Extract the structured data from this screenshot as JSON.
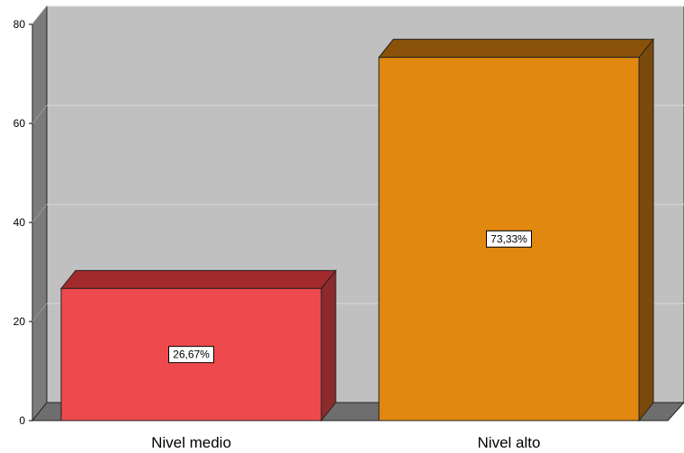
{
  "chart_data": {
    "type": "bar",
    "style": "3d",
    "categories": [
      "Nivel medio",
      "Nivel alto"
    ],
    "values": [
      26.67,
      73.33
    ],
    "data_labels": [
      "26,67%",
      "73,33%"
    ],
    "ylim": [
      0,
      80
    ],
    "yticks": [
      0,
      20,
      40,
      60,
      80
    ],
    "title": "",
    "xlabel": "",
    "ylabel": "",
    "grid": true,
    "legend": "none",
    "colors": {
      "bars": [
        "#ee4a4d",
        "#e08810"
      ],
      "bar_tops": [
        "#a32a2c",
        "#8a5208"
      ],
      "bar_sides": [
        "#8c2a2c",
        "#7a4a0a"
      ],
      "plot_back": "#c0c0c0",
      "left_wall": "#7b7b7b",
      "floor": "#6e6e6e",
      "gridline": "#d8d8d8"
    }
  }
}
